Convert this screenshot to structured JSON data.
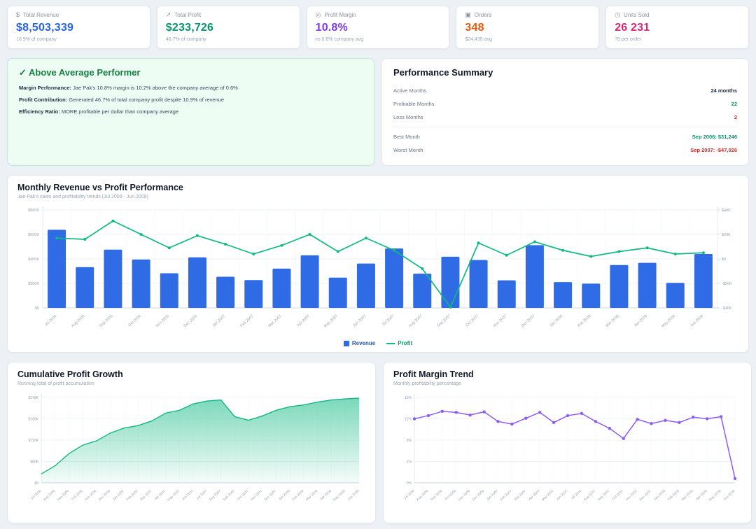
{
  "kpis": [
    {
      "icon": "dollar-icon",
      "glyph": "$",
      "label": "Total Revenue",
      "value": "$8,503,339",
      "sub": "10.9% of company",
      "color": "#2563eb"
    },
    {
      "icon": "trend-up-icon",
      "glyph": "↗",
      "label": "Total Profit",
      "value": "$233,726",
      "sub": "46.7% of company",
      "color": "#059669"
    },
    {
      "icon": "target-icon",
      "glyph": "◎",
      "label": "Profit Margin",
      "value": "10.8%",
      "sub": "vs 0.6% company avg",
      "color": "#7c3aed"
    },
    {
      "icon": "shopping-bag-icon",
      "glyph": "▣",
      "label": "Orders",
      "value": "348",
      "sub": "$24,435 avg",
      "color": "#ea580c"
    },
    {
      "icon": "clock-icon",
      "glyph": "◷",
      "label": "Units Sold",
      "value": "26 231",
      "sub": "75 per order",
      "color": "#db2777"
    }
  ],
  "insight": {
    "title": "✓ Above Average Performer",
    "lines": [
      {
        "label": "Margin Performance:",
        "text": " Jae Pak's 10.8% margin is 10.2% above the company average of 0.6%"
      },
      {
        "label": "Profit Contribution:",
        "text": " Generated 46.7% of total company profit despite 10.9% of revenue"
      },
      {
        "label": "Efficiency Ratio:",
        "text": " MORE profitable per dollar than company average"
      }
    ]
  },
  "summary": {
    "title": "Performance Summary",
    "rows": [
      {
        "label": "Active Months",
        "value": "24 months",
        "color": "#1e293b",
        "divider_before": false
      },
      {
        "label": "Profitable Months",
        "value": "22",
        "color": "#059669",
        "divider_before": false
      },
      {
        "label": "Loss Months",
        "value": "2",
        "color": "#dc2626",
        "divider_before": false
      },
      {
        "label": "Best Month",
        "value": "Sep 2006: $31,246",
        "color": "#059669",
        "divider_before": true
      },
      {
        "label": "Worst Month",
        "value": "Sep 2007: -$47,026",
        "color": "#dc2626",
        "divider_before": false
      }
    ]
  },
  "months": [
    "Jul 2006",
    "Aug 2006",
    "Sep 2006",
    "Oct 2006",
    "Nov 2006",
    "Dec 2006",
    "Jan 2007",
    "Feb 2007",
    "Mar 2007",
    "Apr 2007",
    "May 2007",
    "Jun 2007",
    "Jul 2007",
    "Aug 2007",
    "Sep 2007",
    "Oct 2007",
    "Nov 2007",
    "Dec 2007",
    "Jan 2008",
    "Feb 2008",
    "Mar 2008",
    "Apr 2008",
    "May 2008",
    "Jun 2008"
  ],
  "chart_data": [
    {
      "type": "bar",
      "title": "Monthly Revenue vs Profit Performance",
      "subtitle": "Jae Pak's sales and profitability trends (Jul 2006 - Jun 2008)",
      "categories": [
        "Jul 2006",
        "Aug 2006",
        "Sep 2006",
        "Oct 2006",
        "Nov 2006",
        "Dec 2006",
        "Jan 2007",
        "Feb 2007",
        "Mar 2007",
        "Apr 2007",
        "May 2007",
        "Jun 2007",
        "Jul 2007",
        "Aug 2007",
        "Sep 2007",
        "Oct 2007",
        "Nov 2007",
        "Dec 2007",
        "Jan 2008",
        "Feb 2008",
        "Mar 2008",
        "Apr 2008",
        "May 2008",
        "Jun 2008"
      ],
      "series": [
        {
          "name": "Revenue",
          "type": "bar",
          "axis": "left",
          "color": "#2e6be4",
          "values_k_usd": [
            638,
            333,
            476,
            395,
            283,
            413,
            254,
            227,
            321,
            429,
            247,
            362,
            485,
            279,
            418,
            391,
            225,
            512,
            211,
            198,
            350,
            368,
            204,
            440
          ]
        },
        {
          "name": "Profit",
          "type": "line",
          "axis": "right",
          "color": "#10b981",
          "values_k_usd": [
            17,
            16,
            31,
            20,
            9,
            19,
            12,
            4,
            11,
            20,
            6,
            17,
            7,
            -8,
            -47,
            13,
            3,
            14,
            7,
            2,
            6,
            9,
            4,
            5
          ]
        }
      ],
      "left_axis": {
        "ticks": [
          0,
          200,
          400,
          600,
          800
        ],
        "labels": [
          "$0",
          "$200K",
          "$400K",
          "$600K",
          "$800K"
        ],
        "range": [
          0,
          800
        ]
      },
      "right_axis": {
        "ticks": [
          -40,
          -20,
          0,
          20,
          40
        ],
        "labels": [
          "-$40K",
          "-$20K",
          "$0",
          "$20K",
          "$40K"
        ],
        "range": [
          -40,
          40
        ]
      },
      "legend_position": "bottom",
      "grid": true
    },
    {
      "type": "area",
      "title": "Cumulative Profit Growth",
      "subtitle": "Running total of profit accumulation",
      "x": [
        "Jul 2006",
        "Aug 2006",
        "Sep 2006",
        "Oct 2006",
        "Nov 2006",
        "Dec 2006",
        "Jan 2007",
        "Feb 2007",
        "Mar 2007",
        "Apr 2007",
        "May 2007",
        "Jun 2007",
        "Jul 2007",
        "Aug 2007",
        "Sep 2007",
        "Oct 2007",
        "Nov 2007",
        "Dec 2007",
        "Jan 2008",
        "Feb 2008",
        "Mar 2008",
        "Apr 2008",
        "May 2008",
        "Jun 2008"
      ],
      "values_k_usd": [
        25,
        48,
        82,
        106,
        118,
        140,
        154,
        161,
        174,
        196,
        204,
        222,
        230,
        233,
        186,
        176,
        188,
        204,
        214,
        219,
        227,
        233,
        236,
        238
      ],
      "color": "#10b981",
      "yticks": [
        0,
        60,
        120,
        180,
        240
      ],
      "ylabels": [
        "$0",
        "$60K",
        "$120K",
        "$180K",
        "$240K"
      ],
      "ylim": [
        0,
        240
      ],
      "grid": true
    },
    {
      "type": "line",
      "title": "Profit Margin Trend",
      "subtitle": "Monthly profitability percentage",
      "x": [
        "Jul 2006",
        "Aug 2006",
        "Sep 2006",
        "Oct 2006",
        "Nov 2006",
        "Dec 2006",
        "Jan 2007",
        "Feb 2007",
        "Mar 2007",
        "Apr 2007",
        "May 2007",
        "Jun 2007",
        "Jul 2007",
        "Aug 2007",
        "Sep 2007",
        "Oct 2007",
        "Nov 2007",
        "Dec 2007",
        "Jan 2008",
        "Feb 2008",
        "Mar 2008",
        "Apr 2008",
        "May 2008",
        "Jun 2008"
      ],
      "values_pct": [
        12.0,
        12.6,
        13.4,
        13.2,
        12.7,
        13.3,
        11.5,
        11.0,
        12.1,
        13.2,
        11.3,
        12.6,
        13.0,
        11.5,
        10.2,
        8.3,
        11.9,
        11.1,
        11.7,
        11.3,
        12.3,
        12.0,
        12.4,
        0.8
      ],
      "color": "#8b5cf6",
      "yticks": [
        0,
        4,
        8,
        12,
        16
      ],
      "ylabels": [
        "0%",
        "4%",
        "8%",
        "12%",
        "16%"
      ],
      "ylim": [
        0,
        16
      ],
      "grid": true
    }
  ],
  "colors": {
    "bar_blue": "#2e6be4",
    "profit_green": "#10b981",
    "margin_purple": "#8b5cf6",
    "axis_text": "#94a3b8",
    "grid_line": "#eef1f6"
  }
}
